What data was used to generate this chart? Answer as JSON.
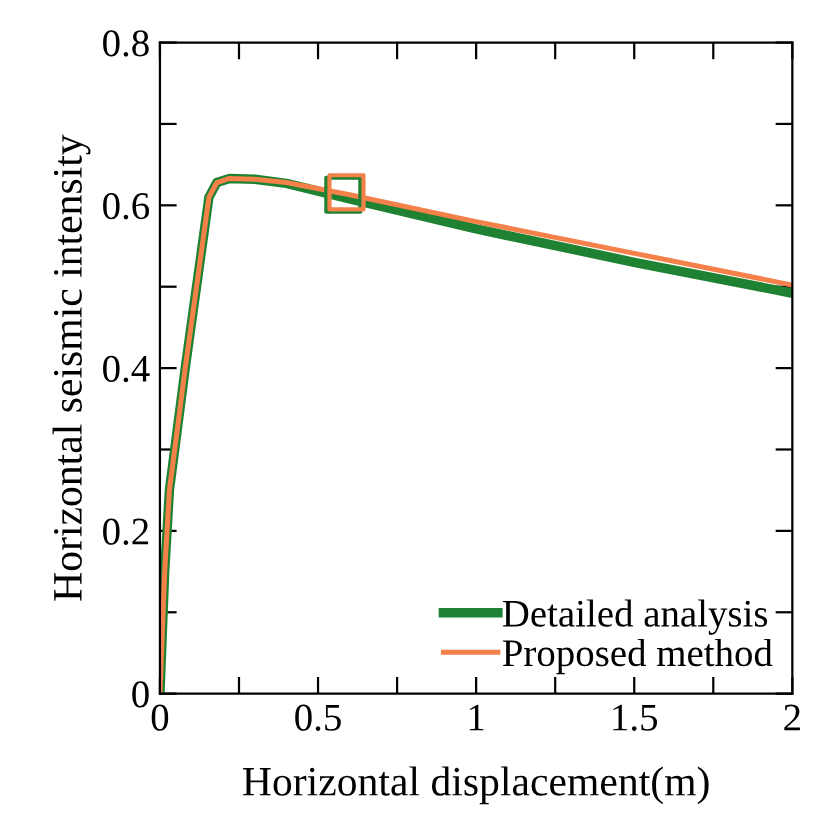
{
  "chart_data": {
    "type": "line",
    "xlabel": "Horizontal displacement(m)",
    "ylabel": "Horizontal seismic intensity",
    "xlim": [
      0,
      2
    ],
    "ylim": [
      0,
      0.8
    ],
    "xticks": [
      0,
      {
        "value": 0.25,
        "label": null
      },
      0.5,
      {
        "value": 0.75,
        "label": null
      },
      1,
      {
        "value": 1.25,
        "label": null
      },
      1.5,
      {
        "value": 1.75,
        "label": null
      },
      2
    ],
    "yticks": [
      0,
      {
        "value": 0.1,
        "label": null
      },
      0.2,
      {
        "value": 0.3,
        "label": null
      },
      0.4,
      {
        "value": 0.5,
        "label": null
      },
      0.6,
      {
        "value": 0.7,
        "label": null
      },
      0.8
    ],
    "grid": false,
    "legend": "bottom right",
    "line_style": "solid",
    "marker": "none",
    "series": [
      {
        "name": "Detailed analysis",
        "color": "#1e8232",
        "x": [
          0,
          0.005,
          0.015,
          0.03,
          0.08,
          0.13,
          0.155,
          0.18,
          0.22,
          0.3,
          0.4,
          0.6,
          1,
          1.5,
          2
        ],
        "values": [
          0,
          0.05,
          0.15,
          0.25,
          0.4,
          0.54,
          0.61,
          0.628,
          0.633,
          0.632,
          0.627,
          0.608,
          0.571,
          0.53,
          0.492
        ]
      },
      {
        "name": "Proposed method",
        "color": "#f4804a",
        "x": [
          0,
          0.005,
          0.015,
          0.03,
          0.08,
          0.13,
          0.155,
          0.18,
          0.22,
          0.3,
          0.4,
          0.6,
          1,
          1.5,
          2
        ],
        "values": [
          0,
          0.05,
          0.15,
          0.25,
          0.4,
          0.54,
          0.61,
          0.628,
          0.633,
          0.632,
          0.628,
          0.613,
          0.58,
          0.541,
          0.502
        ]
      },
      {
        "type": "scatter",
        "marker": "square",
        "color": "#1e8232",
        "x": [
          0.58
        ],
        "values": [
          0.613
        ]
      },
      {
        "type": "scatter",
        "marker": "square",
        "color": "#f4804a",
        "x": [
          0.59
        ],
        "values": [
          0.616
        ]
      }
    ]
  }
}
